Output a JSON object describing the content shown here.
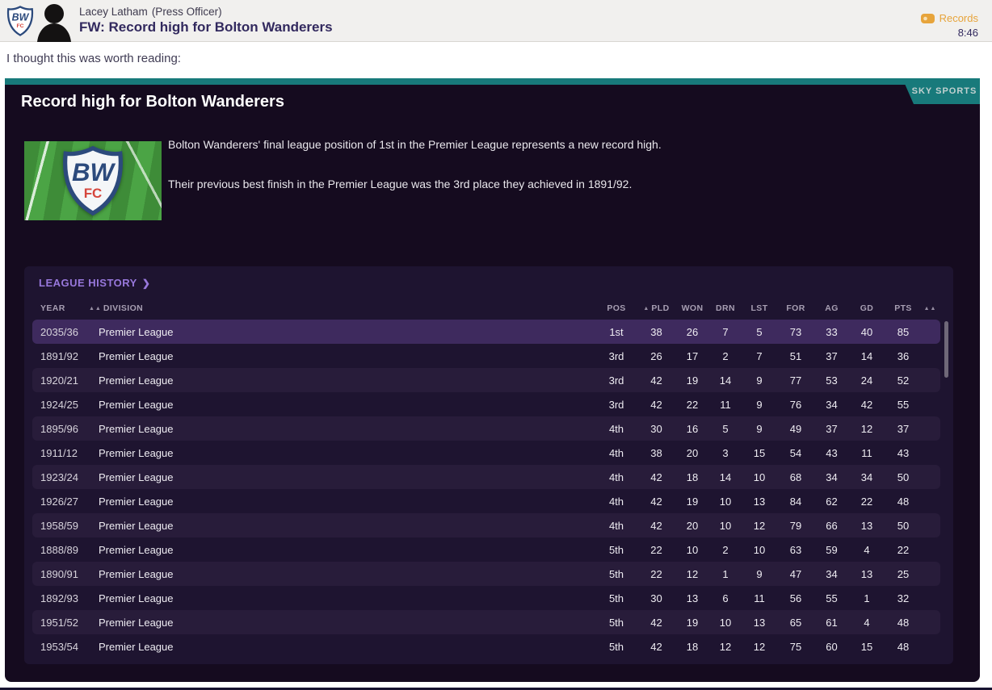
{
  "header": {
    "sender_name": "Lacey Latham",
    "sender_role": "(Press Officer)",
    "subject": "FW: Record high for Bolton Wanderers",
    "records_label": "Records",
    "time": "8:46"
  },
  "intro_line": "I thought this was worth reading:",
  "article": {
    "source_tag": "SKY SPORTS",
    "headline": "Record high for Bolton Wanderers",
    "paragraph_1": "Bolton Wanderers' final league position of 1st in the Premier League represents a new record high.",
    "paragraph_2": "Their previous best finish in the Premier League was the 3rd place they achieved in 1891/92."
  },
  "icons": {
    "chevron_right": "❯",
    "sort_asc": "▲",
    "sort_double": "▲▲"
  },
  "colors": {
    "accent_teal": "#187a7b",
    "records_orange": "#e7a43b",
    "panel_bg": "#150b1f",
    "table_bg": "#1e1430",
    "selected_row": "#3e2a5e",
    "section_title_purple": "#9878dc"
  },
  "table": {
    "section_title": "LEAGUE HISTORY",
    "selected_index": 0,
    "end_sort": "▲▲",
    "columns": [
      {
        "key": "year",
        "label": "YEAR",
        "sort": ""
      },
      {
        "key": "division",
        "label": "DIVISION",
        "sort": "▲▲"
      },
      {
        "key": "pos",
        "label": "POS",
        "sort": ""
      },
      {
        "key": "pld",
        "label": "PLD",
        "sort": "▲"
      },
      {
        "key": "won",
        "label": "WON",
        "sort": ""
      },
      {
        "key": "drn",
        "label": "DRN",
        "sort": ""
      },
      {
        "key": "lst",
        "label": "LST",
        "sort": ""
      },
      {
        "key": "for",
        "label": "FOR",
        "sort": ""
      },
      {
        "key": "ag",
        "label": "AG",
        "sort": ""
      },
      {
        "key": "gd",
        "label": "GD",
        "sort": ""
      },
      {
        "key": "pts",
        "label": "PTS",
        "sort": ""
      }
    ],
    "rows": [
      {
        "year": "2035/36",
        "division": "Premier League",
        "pos": "1st",
        "pld": "38",
        "won": "26",
        "drn": "7",
        "lst": "5",
        "for": "73",
        "ag": "33",
        "gd": "40",
        "pts": "85"
      },
      {
        "year": "1891/92",
        "division": "Premier League",
        "pos": "3rd",
        "pld": "26",
        "won": "17",
        "drn": "2",
        "lst": "7",
        "for": "51",
        "ag": "37",
        "gd": "14",
        "pts": "36"
      },
      {
        "year": "1920/21",
        "division": "Premier League",
        "pos": "3rd",
        "pld": "42",
        "won": "19",
        "drn": "14",
        "lst": "9",
        "for": "77",
        "ag": "53",
        "gd": "24",
        "pts": "52"
      },
      {
        "year": "1924/25",
        "division": "Premier League",
        "pos": "3rd",
        "pld": "42",
        "won": "22",
        "drn": "11",
        "lst": "9",
        "for": "76",
        "ag": "34",
        "gd": "42",
        "pts": "55"
      },
      {
        "year": "1895/96",
        "division": "Premier League",
        "pos": "4th",
        "pld": "30",
        "won": "16",
        "drn": "5",
        "lst": "9",
        "for": "49",
        "ag": "37",
        "gd": "12",
        "pts": "37"
      },
      {
        "year": "1911/12",
        "division": "Premier League",
        "pos": "4th",
        "pld": "38",
        "won": "20",
        "drn": "3",
        "lst": "15",
        "for": "54",
        "ag": "43",
        "gd": "11",
        "pts": "43"
      },
      {
        "year": "1923/24",
        "division": "Premier League",
        "pos": "4th",
        "pld": "42",
        "won": "18",
        "drn": "14",
        "lst": "10",
        "for": "68",
        "ag": "34",
        "gd": "34",
        "pts": "50"
      },
      {
        "year": "1926/27",
        "division": "Premier League",
        "pos": "4th",
        "pld": "42",
        "won": "19",
        "drn": "10",
        "lst": "13",
        "for": "84",
        "ag": "62",
        "gd": "22",
        "pts": "48"
      },
      {
        "year": "1958/59",
        "division": "Premier League",
        "pos": "4th",
        "pld": "42",
        "won": "20",
        "drn": "10",
        "lst": "12",
        "for": "79",
        "ag": "66",
        "gd": "13",
        "pts": "50"
      },
      {
        "year": "1888/89",
        "division": "Premier League",
        "pos": "5th",
        "pld": "22",
        "won": "10",
        "drn": "2",
        "lst": "10",
        "for": "63",
        "ag": "59",
        "gd": "4",
        "pts": "22"
      },
      {
        "year": "1890/91",
        "division": "Premier League",
        "pos": "5th",
        "pld": "22",
        "won": "12",
        "drn": "1",
        "lst": "9",
        "for": "47",
        "ag": "34",
        "gd": "13",
        "pts": "25"
      },
      {
        "year": "1892/93",
        "division": "Premier League",
        "pos": "5th",
        "pld": "30",
        "won": "13",
        "drn": "6",
        "lst": "11",
        "for": "56",
        "ag": "55",
        "gd": "1",
        "pts": "32"
      },
      {
        "year": "1951/52",
        "division": "Premier League",
        "pos": "5th",
        "pld": "42",
        "won": "19",
        "drn": "10",
        "lst": "13",
        "for": "65",
        "ag": "61",
        "gd": "4",
        "pts": "48"
      },
      {
        "year": "1953/54",
        "division": "Premier League",
        "pos": "5th",
        "pld": "42",
        "won": "18",
        "drn": "12",
        "lst": "12",
        "for": "75",
        "ag": "60",
        "gd": "15",
        "pts": "48"
      }
    ]
  }
}
